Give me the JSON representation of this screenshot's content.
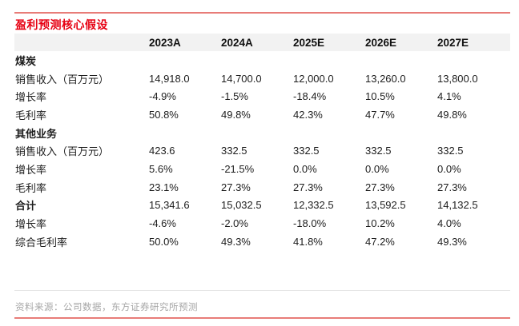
{
  "title": "盈利预测核心假设",
  "source_note": "资料来源：公司数据，东方证券研究所预测",
  "colors": {
    "title_red": "#e60012",
    "rule_red": "#e87c78",
    "header_bg": "#f2f2f2",
    "separator_gray": "#e4e4e4",
    "source_text_gray": "#a6a6a6",
    "body_text": "#1d1d1d"
  },
  "chart_data": {
    "type": "table",
    "title": "盈利预测核心假设",
    "columns": [
      "",
      "2023A",
      "2024A",
      "2025E",
      "2026E",
      "2027E"
    ],
    "rows": [
      {
        "label": "煤炭",
        "values": [
          "",
          "",
          "",
          "",
          ""
        ]
      },
      {
        "label": "销售收入（百万元）",
        "values": [
          "14,918.0",
          "14,700.0",
          "12,000.0",
          "13,260.0",
          "13,800.0"
        ]
      },
      {
        "label": "增长率",
        "values": [
          "-4.9%",
          "-1.5%",
          "-18.4%",
          "10.5%",
          "4.1%"
        ]
      },
      {
        "label": "毛利率",
        "values": [
          "50.8%",
          "49.8%",
          "42.3%",
          "47.7%",
          "49.8%"
        ]
      },
      {
        "label": "其他业务",
        "values": [
          "",
          "",
          "",
          "",
          ""
        ]
      },
      {
        "label": "销售收入（百万元）",
        "values": [
          "423.6",
          "332.5",
          "332.5",
          "332.5",
          "332.5"
        ]
      },
      {
        "label": "增长率",
        "values": [
          "5.6%",
          "-21.5%",
          "0.0%",
          "0.0%",
          "0.0%"
        ]
      },
      {
        "label": "毛利率",
        "values": [
          "23.1%",
          "27.3%",
          "27.3%",
          "27.3%",
          "27.3%"
        ]
      },
      {
        "label": "合计",
        "values": [
          "15,341.6",
          "15,032.5",
          "12,332.5",
          "13,592.5",
          "14,132.5"
        ]
      },
      {
        "label": "增长率",
        "values": [
          "-4.6%",
          "-2.0%",
          "-18.0%",
          "10.2%",
          "4.0%"
        ]
      },
      {
        "label": "综合毛利率",
        "values": [
          "50.0%",
          "49.3%",
          "41.8%",
          "47.2%",
          "49.3%"
        ]
      }
    ],
    "source": "资料来源：公司数据，东方证券研究所预测"
  }
}
